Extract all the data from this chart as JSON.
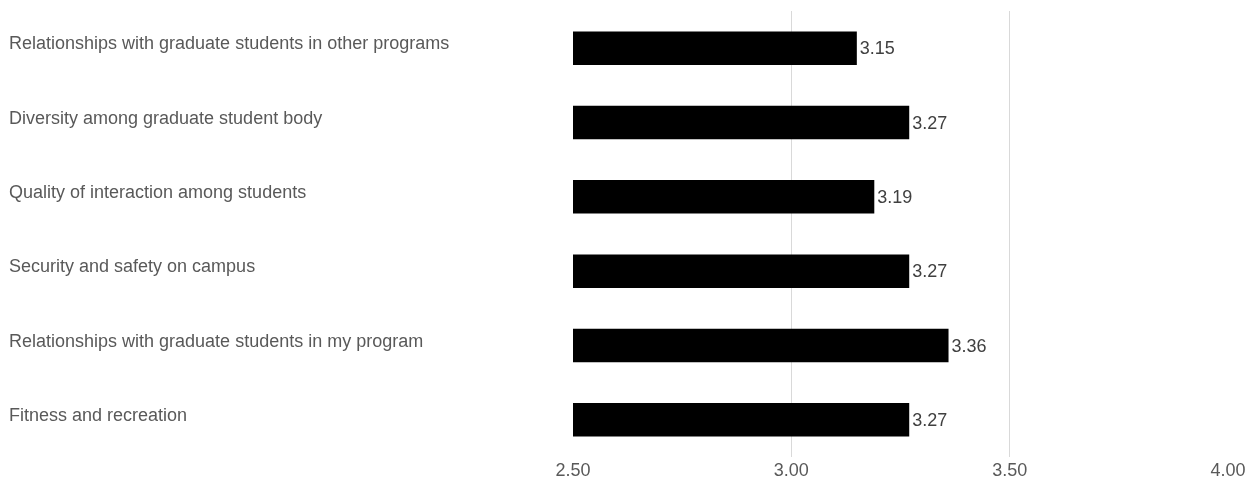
{
  "chart_data": {
    "type": "bar",
    "orientation": "horizontal",
    "categories": [
      "Relationships with graduate students in other programs",
      "Diversity among graduate student body",
      "Quality of interaction among students",
      "Security and safety on campus",
      "Relationships with graduate students in my program",
      "Fitness and recreation"
    ],
    "values": [
      3.15,
      3.27,
      3.19,
      3.27,
      3.36,
      3.27
    ],
    "color": "#000000",
    "xlim": [
      2.5,
      4.0
    ],
    "xticks": [
      {
        "value": 2.5,
        "label": "2.50"
      },
      {
        "value": 3,
        "label": "3.00"
      },
      {
        "value": 3.5,
        "label": "3.50"
      },
      {
        "value": 4,
        "label": "4.00"
      }
    ],
    "grid": "x",
    "data_labels": true
  }
}
